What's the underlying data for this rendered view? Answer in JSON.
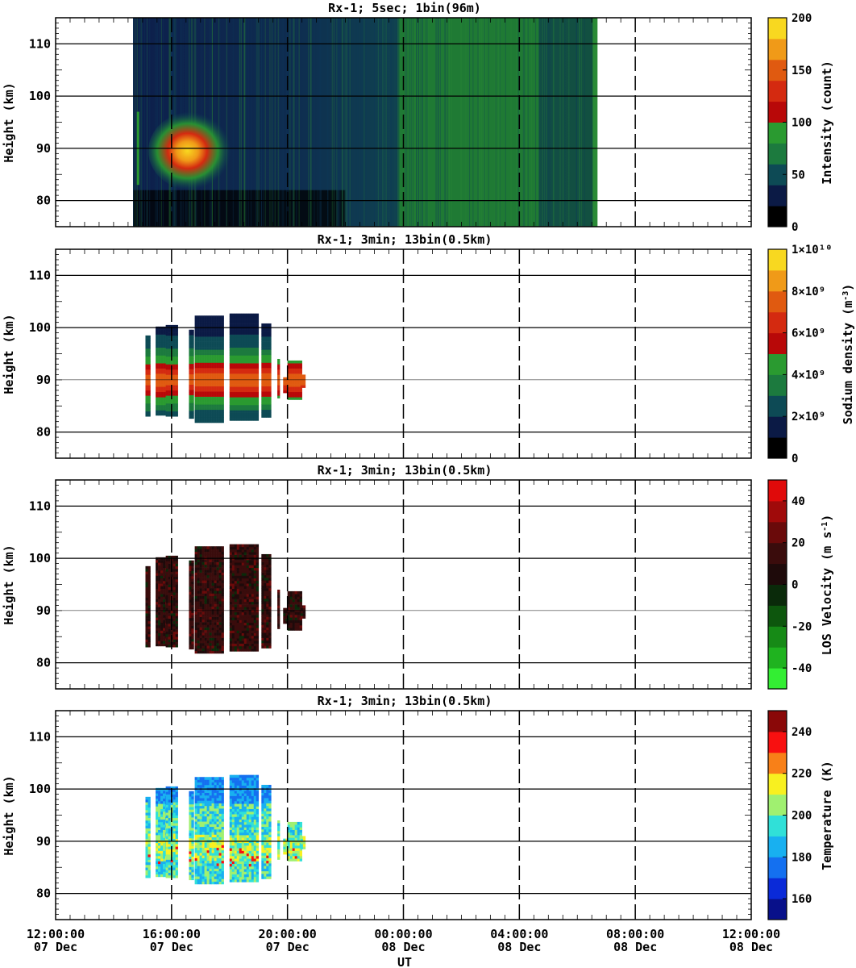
{
  "chart_data": [
    {
      "type": "heatmap",
      "title": "Rx-1;  5sec; 1bin(96m)",
      "ylabel": "Height (km)",
      "xlabel": "",
      "xlim": [
        "07 Dec 12:00:00",
        "08 Dec 12:00:00"
      ],
      "ylim": [
        75,
        115
      ],
      "yticks": [
        80,
        90,
        100,
        110
      ],
      "colorbar": {
        "label": "Intensity (count)",
        "ticks": [
          "0",
          "50",
          "100",
          "150",
          "200"
        ],
        "range": [
          0,
          200
        ]
      },
      "data_window_ut": [
        "07 Dec 14:40",
        "08 Dec 06:40"
      ],
      "note_features": [
        {
          "kind": "sodium layer",
          "x_ut": [
            "14:50",
            "18:00"
          ],
          "y_km": [
            82,
            97
          ]
        },
        {
          "kind": "sky background",
          "x_ut": [
            "23:50",
            "04:40"
          ],
          "level_count": 75
        },
        {
          "kind": "stripe",
          "x_ut": [
            "06:32",
            "06:40"
          ],
          "level_count": 75
        }
      ]
    },
    {
      "type": "heatmap",
      "title": "Rx-1; 3min; 13bin(0.5km)",
      "ylabel": "Height (km)",
      "xlabel": "",
      "xlim": [
        "07 Dec 12:00:00",
        "08 Dec 12:00:00"
      ],
      "ylim": [
        75,
        115
      ],
      "yticks": [
        80,
        90,
        100,
        110
      ],
      "colorbar": {
        "label": "Sodium density (m-3)",
        "ticks": [
          "0",
          "2×10⁹",
          "4×10⁹",
          "6×10⁹",
          "8×10⁹",
          "1×10¹⁰"
        ],
        "range": [
          0,
          10000000000
        ]
      }
    },
    {
      "type": "heatmap",
      "title": "Rx-1; 3min; 13bin(0.5km)",
      "ylabel": "Height (km)",
      "xlabel": "",
      "xlim": [
        "07 Dec 12:00:00",
        "08 Dec 12:00:00"
      ],
      "ylim": [
        75,
        115
      ],
      "yticks": [
        80,
        90,
        100,
        110
      ],
      "colorbar": {
        "label": "LOS Velocity (m s-1)",
        "ticks": [
          "-40",
          "-20",
          "0",
          "20",
          "40"
        ],
        "range": [
          -50,
          50
        ]
      }
    },
    {
      "type": "heatmap",
      "title": "Rx-1; 3min; 13bin(0.5km)",
      "ylabel": "Height (km)",
      "xlabel": "UT",
      "xlim": [
        "07 Dec 12:00:00",
        "08 Dec 12:00:00"
      ],
      "ylim": [
        75,
        115
      ],
      "yticks": [
        80,
        90,
        100,
        110
      ],
      "colorbar": {
        "label": "Temperature (K)",
        "ticks": [
          "160",
          "180",
          "200",
          "220",
          "240"
        ],
        "range": [
          150,
          250
        ]
      }
    }
  ],
  "x_tick_labels": [
    {
      "time": "12:00:00",
      "date": "07 Dec"
    },
    {
      "time": "16:00:00",
      "date": "07 Dec"
    },
    {
      "time": "20:00:00",
      "date": "07 Dec"
    },
    {
      "time": "00:00:00",
      "date": "08 Dec"
    },
    {
      "time": "04:00:00",
      "date": "08 Dec"
    },
    {
      "time": "08:00:00",
      "date": "08 Dec"
    },
    {
      "time": "12:00:00",
      "date": "08 Dec"
    }
  ],
  "colormaps": {
    "intensity": [
      "#000000",
      "#0b1a45",
      "#0d4a55",
      "#1c7a3e",
      "#2a9a30",
      "#b80808",
      "#d42a10",
      "#e05a10",
      "#f09a18",
      "#f8d820"
    ],
    "sodium": [
      "#000000",
      "#0b1a45",
      "#0d4a55",
      "#1c7a3e",
      "#2a9a30",
      "#b80808",
      "#d42a10",
      "#e05a10",
      "#f09a18",
      "#f8d820"
    ],
    "velocity": [
      "#33ee33",
      "#1fb31f",
      "#168a16",
      "#0d560d",
      "#0a2a0a",
      "#1e0a0a",
      "#3a0c0c",
      "#6a0a0a",
      "#a00a0a",
      "#e00a0a"
    ],
    "temperature": [
      "#08108a",
      "#0a2ad8",
      "#1470f0",
      "#18b0f0",
      "#30e0d8",
      "#a0f070",
      "#f8f020",
      "#f88018",
      "#f81010",
      "#8a0808"
    ]
  }
}
